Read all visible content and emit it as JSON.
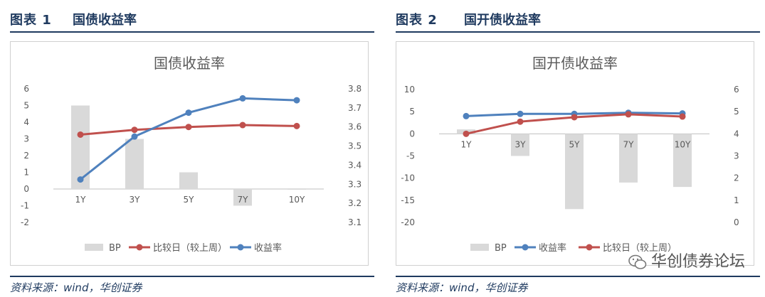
{
  "left_panel": {
    "fig_label": "图表 1",
    "fig_title": "国债收益率",
    "source": "资料来源：wind，华创证券"
  },
  "right_panel": {
    "fig_label": "图表 2",
    "fig_title": "国开债收益率",
    "source": "资料来源：wind，华创证券"
  },
  "watermark": {
    "text": "华创债券论坛",
    "icon": "wechat-icon"
  },
  "colors": {
    "bp": "#d9d9d9",
    "red": "#c0504d",
    "blue": "#4f81bd",
    "axis": "#808080",
    "title": "#595959",
    "header": "#1f3a5f"
  },
  "chart_data": [
    {
      "type": "bar",
      "title": "国债收益率",
      "categories": [
        "1Y",
        "3Y",
        "5Y",
        "7Y",
        "10Y"
      ],
      "series": [
        {
          "name": "BP",
          "type": "bar",
          "axis": "left",
          "values": [
            5,
            3,
            1,
            -1,
            0
          ]
        },
        {
          "name": "比较日（较上周）",
          "type": "line",
          "axis": "right",
          "values": [
            3.56,
            3.585,
            3.6,
            3.61,
            3.605
          ]
        },
        {
          "name": "收益率",
          "type": "line",
          "axis": "right",
          "values": [
            3.325,
            3.55,
            3.675,
            3.75,
            3.74
          ]
        }
      ],
      "y_left": {
        "min": -2,
        "max": 6,
        "step": 1,
        "ticks": [
          "-2",
          "-1",
          "0",
          "1",
          "2",
          "3",
          "4",
          "5",
          "6"
        ]
      },
      "y_right": {
        "min": 3.1,
        "max": 3.8,
        "step": 0.1,
        "ticks": [
          "3.1",
          "3.2",
          "3.3",
          "3.4",
          "3.5",
          "3.6",
          "3.7",
          "3.8"
        ]
      },
      "legend": [
        "BP",
        "比较日（较上周）",
        "收益率"
      ],
      "legend_position": "bottom",
      "grid": false
    },
    {
      "type": "bar",
      "title": "国开债收益率",
      "categories": [
        "1Y",
        "3Y",
        "5Y",
        "7Y",
        "10Y"
      ],
      "series": [
        {
          "name": "BP",
          "type": "bar",
          "axis": "left",
          "values": [
            1,
            -5,
            -17,
            -11,
            -12
          ]
        },
        {
          "name": "收益率",
          "type": "line",
          "axis": "right",
          "values": [
            4.8,
            4.9,
            4.9,
            4.95,
            4.92
          ]
        },
        {
          "name": "比较日（较上周）",
          "type": "line",
          "axis": "right",
          "values": [
            4.0,
            4.55,
            4.75,
            4.88,
            4.78
          ]
        }
      ],
      "y_left": {
        "min": -20,
        "max": 10,
        "step": 5,
        "ticks": [
          "-20",
          "-15",
          "-10",
          "-5",
          "0",
          "5",
          "10"
        ]
      },
      "y_right": {
        "min": 0,
        "max": 6,
        "step": 1,
        "ticks": [
          "0",
          "1",
          "2",
          "3",
          "4",
          "5",
          "6"
        ]
      },
      "legend": [
        "BP",
        "收益率",
        "比较日（较上周）"
      ],
      "legend_position": "bottom",
      "grid": false
    }
  ]
}
